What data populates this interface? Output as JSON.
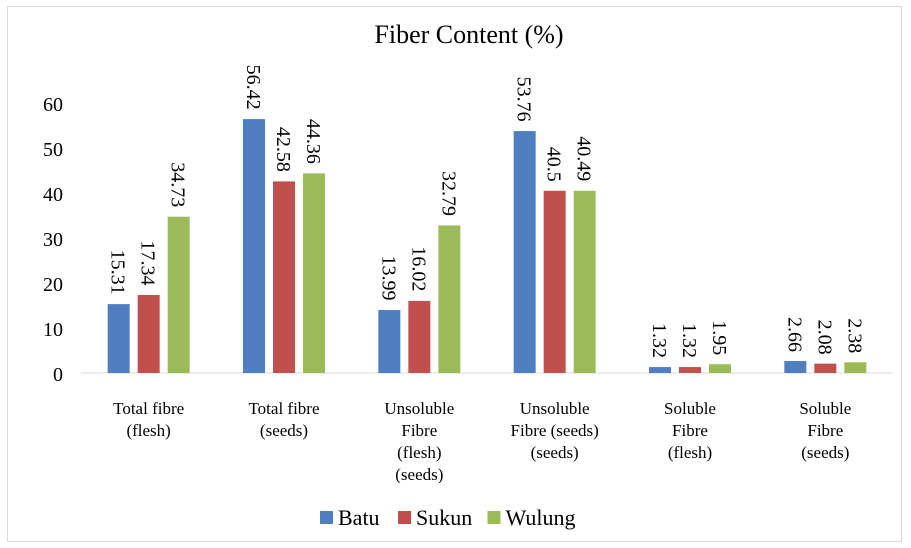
{
  "chart_data": {
    "type": "bar",
    "title": "Fiber Content (%)",
    "categories": [
      [
        "Total fibre",
        "(flesh)"
      ],
      [
        "Total fibre",
        "(seeds)"
      ],
      [
        "Unsoluble",
        "Fibre",
        "(flesh)",
        "(seeds)"
      ],
      [
        "Unsoluble",
        "Fibre (seeds)",
        "(seeds)"
      ],
      [
        "Soluble",
        "Fibre",
        "(flesh)"
      ],
      [
        "Soluble",
        "Fibre",
        "(seeds)"
      ]
    ],
    "series": [
      {
        "name": "Batu",
        "color": "#4f7fc0",
        "values": [
          15.31,
          56.42,
          13.99,
          53.76,
          1.32,
          2.66
        ],
        "labels": [
          "15.31",
          "56.42",
          "13.99",
          "53.76",
          "1.32",
          "2.66"
        ]
      },
      {
        "name": "Sukun",
        "color": "#c0504d",
        "values": [
          17.34,
          42.58,
          16.02,
          40.5,
          1.32,
          2.08
        ],
        "labels": [
          "17.34",
          "42.58",
          "16.02",
          "40.5",
          "1.32",
          "2.08"
        ]
      },
      {
        "name": "Wulung",
        "color": "#9bbb59",
        "values": [
          34.73,
          44.36,
          32.79,
          40.49,
          1.95,
          2.38
        ],
        "labels": [
          "34.73",
          "44.36",
          "32.79",
          "40.49",
          "1.95",
          "2.38"
        ]
      }
    ],
    "yticks": [
      "0",
      "10",
      "20",
      "30",
      "40",
      "50",
      "60"
    ],
    "ylim": [
      0,
      60
    ],
    "grid": false,
    "legend": "bottom"
  }
}
